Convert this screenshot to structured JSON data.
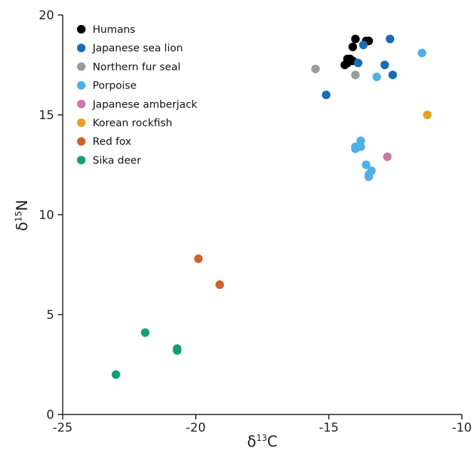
{
  "chart_data": {
    "type": "scatter",
    "title": "",
    "xlabel": {
      "prefix": "δ",
      "sup": "13",
      "suffix": "C"
    },
    "ylabel": {
      "prefix": "δ",
      "sup": "15",
      "suffix": "N"
    },
    "xlim": [
      -25,
      -10
    ],
    "ylim": [
      0,
      20
    ],
    "xticks": [
      -25,
      -20,
      -15,
      -10
    ],
    "yticks": [
      0,
      5,
      10,
      15,
      20
    ],
    "grid": false,
    "legend_position": "top-left",
    "series": [
      {
        "name": "Humans",
        "color": "#000000",
        "points": [
          [
            -14.0,
            18.8
          ],
          [
            -13.6,
            18.7
          ],
          [
            -13.5,
            18.7
          ],
          [
            -14.1,
            18.4
          ],
          [
            -14.3,
            17.8
          ],
          [
            -14.2,
            17.8
          ],
          [
            -14.4,
            17.5
          ],
          [
            -14.3,
            17.6
          ],
          [
            -14.1,
            17.7
          ]
        ]
      },
      {
        "name": "Japanese sea lion",
        "color": "#1a6db5",
        "points": [
          [
            -12.7,
            18.8
          ],
          [
            -13.7,
            18.5
          ],
          [
            -13.9,
            17.6
          ],
          [
            -12.9,
            17.5
          ],
          [
            -12.6,
            17.0
          ],
          [
            -15.1,
            16.0
          ]
        ]
      },
      {
        "name": "Northern fur seal",
        "color": "#9b9b9b",
        "points": [
          [
            -15.5,
            17.3
          ],
          [
            -14.0,
            17.0
          ]
        ]
      },
      {
        "name": "Porpoise",
        "color": "#4fb0e5",
        "points": [
          [
            -11.5,
            18.1
          ],
          [
            -13.2,
            16.9
          ],
          [
            -13.8,
            13.7
          ],
          [
            -14.0,
            13.4
          ],
          [
            -13.8,
            13.4
          ],
          [
            -14.0,
            13.3
          ],
          [
            -13.6,
            12.5
          ],
          [
            -13.4,
            12.2
          ],
          [
            -13.5,
            12.0
          ],
          [
            -13.5,
            11.9
          ]
        ]
      },
      {
        "name": "Japanese amberjack",
        "color": "#cc79a7",
        "points": [
          [
            -12.8,
            12.9
          ]
        ]
      },
      {
        "name": "Korean rockfish",
        "color": "#e5a224",
        "points": [
          [
            -11.3,
            15.0
          ]
        ]
      },
      {
        "name": "Red fox",
        "color": "#d0622a",
        "points": [
          [
            -19.9,
            7.8
          ],
          [
            -19.1,
            6.5
          ]
        ]
      },
      {
        "name": "Sika deer",
        "color": "#149e78",
        "points": [
          [
            -21.9,
            4.1
          ],
          [
            -20.7,
            3.3
          ],
          [
            -20.7,
            3.2
          ],
          [
            -23.0,
            2.0
          ]
        ]
      }
    ]
  }
}
